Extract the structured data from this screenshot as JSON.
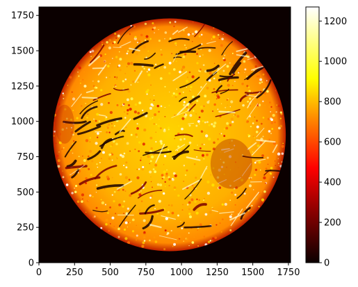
{
  "chart_data": {
    "type": "heatmap",
    "title": "",
    "xlabel": "",
    "ylabel": "",
    "colormap": "hot",
    "xlim": [
      0,
      1765
    ],
    "ylim": [
      0,
      1810
    ],
    "x_ticks": [
      0,
      250,
      500,
      750,
      1000,
      1250,
      1500,
      1750
    ],
    "y_ticks": [
      0,
      250,
      500,
      750,
      1000,
      1250,
      1500,
      1750
    ],
    "colorbar": {
      "range": [
        0,
        1270
      ],
      "ticks": [
        0,
        200,
        400,
        600,
        800,
        1000,
        1200
      ]
    },
    "circular_field": {
      "center": [
        915,
        905
      ],
      "radius": 820,
      "outside_value": 0
    }
  }
}
